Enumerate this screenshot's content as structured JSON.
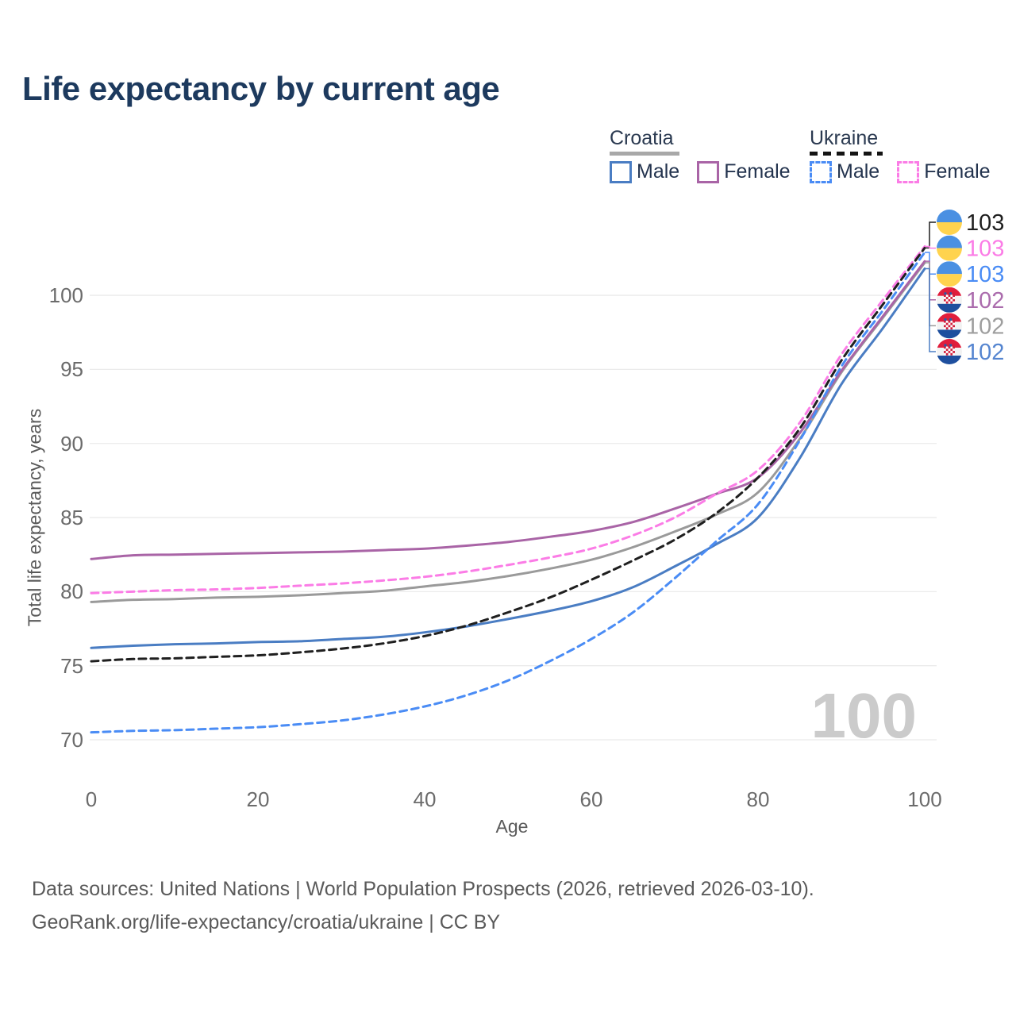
{
  "title": "Life expectancy by current age",
  "legend": {
    "croatia": {
      "label": "Croatia",
      "male": "Male",
      "female": "Female"
    },
    "ukraine": {
      "label": "Ukraine",
      "male": "Male",
      "female": "Female"
    }
  },
  "watermark": "100",
  "footer": {
    "line1": "Data sources: United Nations | World Population Prospects (2026, retrieved 2026-03-10).",
    "line2": "GeoRank.org/life-expectancy/croatia/ukraine | CC BY"
  },
  "colors": {
    "title": "#1d3a5e",
    "grid": "#ebebeb",
    "tick_text": "#6b6b6b",
    "watermark": "#cbcbcb",
    "croatia_male": "#4a7dc3",
    "croatia_female": "#a964a6",
    "croatia_total": "#9a9a9a",
    "ukraine_male": "#4a8cf5",
    "ukraine_female": "#fb7ce6",
    "ukraine_total": "#1f1f1f"
  },
  "chart_data": {
    "type": "line",
    "title": "Life expectancy by current age",
    "xlabel": "Age",
    "ylabel": "Total life expectancy, years",
    "xlim": [
      0,
      100
    ],
    "ylim": [
      68,
      104
    ],
    "xticks": [
      0,
      20,
      40,
      60,
      80,
      100
    ],
    "yticks": [
      70,
      75,
      80,
      85,
      90,
      95,
      100
    ],
    "grid": "horizontal",
    "legend_position": "top-right",
    "x": [
      0,
      5,
      10,
      15,
      20,
      25,
      30,
      35,
      40,
      45,
      50,
      55,
      60,
      65,
      70,
      75,
      80,
      85,
      90,
      95,
      100
    ],
    "series": [
      {
        "id": "ukraine-total",
        "country": "Ukraine",
        "sex": "Total",
        "color": "#1f1f1f",
        "label_color": "#1f1f1f",
        "dash": true,
        "flag": "ukraine",
        "end_label": "103",
        "z": 6,
        "values": [
          75.3,
          75.45,
          75.5,
          75.6,
          75.7,
          75.9,
          76.15,
          76.5,
          77.0,
          77.7,
          78.6,
          79.6,
          80.8,
          82.1,
          83.5,
          85.3,
          87.7,
          91.0,
          95.6,
          99.4,
          103.2
        ]
      },
      {
        "id": "ukraine-female",
        "country": "Ukraine",
        "sex": "Female",
        "color": "#fb7ce6",
        "label_color": "#fb7ce6",
        "dash": true,
        "flag": "ukraine",
        "end_label": "103",
        "z": 4,
        "values": [
          79.9,
          80.0,
          80.1,
          80.15,
          80.25,
          80.4,
          80.55,
          80.75,
          81.0,
          81.35,
          81.8,
          82.3,
          82.9,
          83.8,
          85.0,
          86.6,
          88.2,
          91.4,
          96.0,
          99.7,
          103.3
        ]
      },
      {
        "id": "ukraine-male",
        "country": "Ukraine",
        "sex": "Male",
        "color": "#4a8cf5",
        "label_color": "#4a8cf5",
        "dash": true,
        "flag": "ukraine",
        "end_label": "103",
        "z": 5,
        "values": [
          70.5,
          70.6,
          70.65,
          70.75,
          70.85,
          71.05,
          71.3,
          71.7,
          72.25,
          73.0,
          74.0,
          75.3,
          76.8,
          78.6,
          80.9,
          83.4,
          85.9,
          90.2,
          95.2,
          99.0,
          102.9
        ]
      },
      {
        "id": "croatia-female",
        "country": "Croatia",
        "sex": "Female",
        "color": "#a964a6",
        "label_color": "#ab6cad",
        "dash": false,
        "flag": "croatia",
        "end_label": "102",
        "z": 2,
        "values": [
          82.2,
          82.45,
          82.5,
          82.55,
          82.6,
          82.65,
          82.7,
          82.8,
          82.9,
          83.1,
          83.35,
          83.7,
          84.1,
          84.7,
          85.6,
          86.6,
          87.7,
          90.7,
          94.9,
          98.6,
          102.3
        ]
      },
      {
        "id": "croatia-total",
        "country": "Croatia",
        "sex": "Total",
        "color": "#9a9a9a",
        "label_color": "#9e9e9e",
        "dash": false,
        "flag": "croatia",
        "end_label": "102",
        "z": 1,
        "values": [
          79.3,
          79.45,
          79.5,
          79.6,
          79.65,
          79.75,
          79.9,
          80.05,
          80.35,
          80.65,
          81.05,
          81.55,
          82.15,
          83.0,
          84.05,
          85.2,
          86.7,
          90.3,
          94.8,
          98.5,
          102.2
        ]
      },
      {
        "id": "croatia-male",
        "country": "Croatia",
        "sex": "Male",
        "color": "#4a7dc3",
        "label_color": "#5585d0",
        "dash": false,
        "flag": "croatia",
        "end_label": "102",
        "z": 3,
        "values": [
          76.2,
          76.35,
          76.45,
          76.5,
          76.6,
          76.65,
          76.8,
          76.95,
          77.25,
          77.65,
          78.15,
          78.7,
          79.35,
          80.3,
          81.7,
          83.2,
          85.0,
          89.0,
          94.0,
          97.8,
          101.8
        ]
      }
    ]
  }
}
